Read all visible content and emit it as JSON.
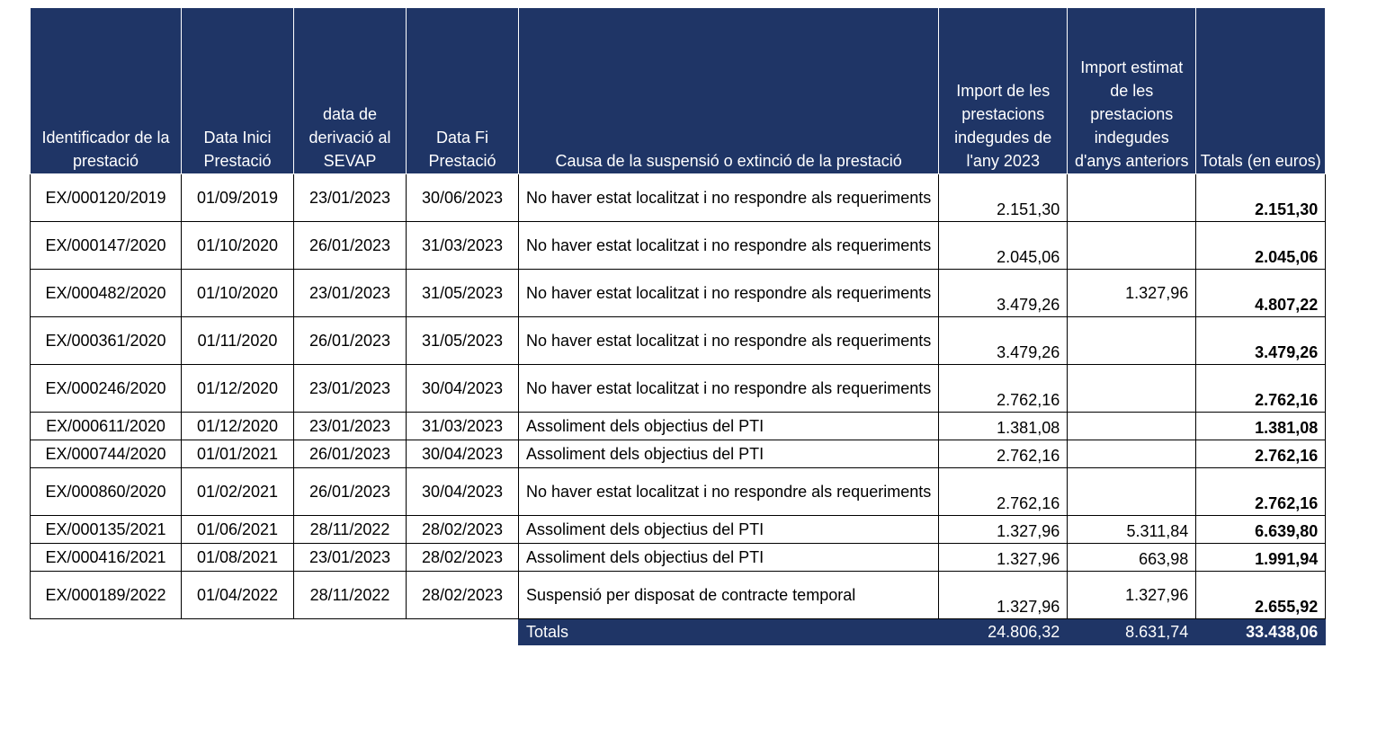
{
  "headers": [
    "Identificador de la prestació",
    "Data Inici Prestació",
    "data de derivació al SEVAP",
    "Data Fi Prestació",
    "Causa de la suspensió o extinció de la prestació",
    "Import de les prestacions indegudes de l'any 2023",
    "Import estimat de les prestacions indegudes d'anys anteriors",
    "Totals (en euros)"
  ],
  "rows": [
    {
      "id": "EX/000120/2019",
      "inici": "01/09/2019",
      "derivacio": "23/01/2023",
      "fi": "30/06/2023",
      "causa": "No haver estat localitzat i no respondre als requeriments",
      "import2023": "2.151,30",
      "anteriors": "",
      "total": "2.151,30"
    },
    {
      "id": "EX/000147/2020",
      "inici": "01/10/2020",
      "derivacio": "26/01/2023",
      "fi": "31/03/2023",
      "causa": "No haver estat localitzat i no respondre als requeriments",
      "import2023": "2.045,06",
      "anteriors": "",
      "total": "2.045,06"
    },
    {
      "id": "EX/000482/2020",
      "inici": "01/10/2020",
      "derivacio": "23/01/2023",
      "fi": "31/05/2023",
      "causa": "No haver estat localitzat i no respondre als requeriments",
      "import2023": "3.479,26",
      "anteriors": "1.327,96",
      "total": "4.807,22"
    },
    {
      "id": "EX/000361/2020",
      "inici": "01/11/2020",
      "derivacio": "26/01/2023",
      "fi": "31/05/2023",
      "causa": "No haver estat localitzat i no respondre als requeriments",
      "import2023": "3.479,26",
      "anteriors": "",
      "total": "3.479,26"
    },
    {
      "id": "EX/000246/2020",
      "inici": "01/12/2020",
      "derivacio": "23/01/2023",
      "fi": "30/04/2023",
      "causa": "No haver estat localitzat i no respondre als requeriments",
      "import2023": "2.762,16",
      "anteriors": "",
      "total": "2.762,16"
    },
    {
      "id": "EX/000611/2020",
      "inici": "01/12/2020",
      "derivacio": "23/01/2023",
      "fi": "31/03/2023",
      "causa": "Assoliment dels objectius del PTI",
      "import2023": "1.381,08",
      "anteriors": "",
      "total": "1.381,08"
    },
    {
      "id": "EX/000744/2020",
      "inici": "01/01/2021",
      "derivacio": "26/01/2023",
      "fi": "30/04/2023",
      "causa": "Assoliment dels objectius del PTI",
      "import2023": "2.762,16",
      "anteriors": "",
      "total": "2.762,16"
    },
    {
      "id": "EX/000860/2020",
      "inici": "01/02/2021",
      "derivacio": "26/01/2023",
      "fi": "30/04/2023",
      "causa": "No haver estat localitzat i no respondre als requeriments",
      "import2023": "2.762,16",
      "anteriors": "",
      "total": "2.762,16"
    },
    {
      "id": "EX/000135/2021",
      "inici": "01/06/2021",
      "derivacio": "28/11/2022",
      "fi": "28/02/2023",
      "causa": "Assoliment dels objectius del PTI",
      "import2023": "1.327,96",
      "anteriors": "5.311,84",
      "total": "6.639,80"
    },
    {
      "id": "EX/000416/2021",
      "inici": "01/08/2021",
      "derivacio": "23/01/2023",
      "fi": "28/02/2023",
      "causa": "Assoliment dels objectius del PTI",
      "import2023": "1.327,96",
      "anteriors": "663,98",
      "total": "1.991,94"
    },
    {
      "id": "EX/000189/2022",
      "inici": "01/04/2022",
      "derivacio": "28/11/2022",
      "fi": "28/02/2023",
      "causa": "Suspensió per disposat de contracte temporal",
      "import2023": "1.327,96",
      "anteriors": "1.327,96",
      "total": "2.655,92"
    }
  ],
  "totals": {
    "label": "Totals",
    "import2023": "24.806,32",
    "anteriors": "8.631,74",
    "total": "33.438,06"
  }
}
